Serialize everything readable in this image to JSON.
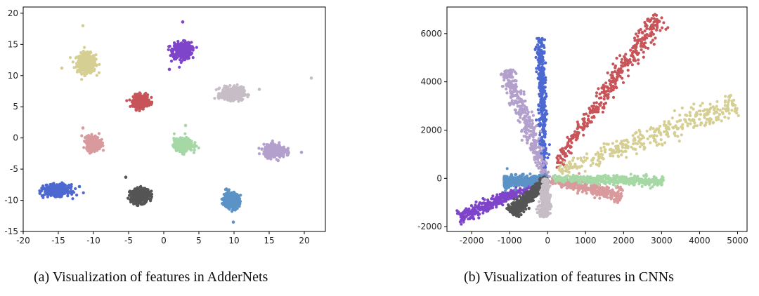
{
  "chart_data": [
    {
      "type": "scatter",
      "caption": "(a) Visualization of features in AdderNets",
      "xlim": [
        -20,
        23
      ],
      "ylim": [
        -15,
        21
      ],
      "xticks": [
        -20,
        -15,
        -10,
        -5,
        0,
        5,
        10,
        15,
        20
      ],
      "yticks": [
        -15,
        -10,
        -5,
        0,
        5,
        10,
        15,
        20
      ],
      "grid": false,
      "series": [
        {
          "color": "#d6cf93",
          "center": [
            -11,
            12
          ],
          "spread": [
            1.2,
            1.4
          ],
          "outliers": [
            [
              -11.5,
              18
            ],
            [
              -14.5,
              11.2
            ]
          ]
        },
        {
          "color": "#7e44c9",
          "center": [
            2.6,
            14
          ],
          "spread": [
            1.2,
            1.2
          ],
          "outliers": [
            [
              2.7,
              18.6
            ],
            [
              0.8,
              11
            ]
          ]
        },
        {
          "color": "#c65459",
          "center": [
            -3.2,
            5.9
          ],
          "spread": [
            1.0,
            0.9
          ],
          "outliers": []
        },
        {
          "color": "#c6bdc6",
          "center": [
            9.8,
            7.1
          ],
          "spread": [
            1.4,
            0.9
          ],
          "outliers": [
            [
              21,
              9.6
            ],
            [
              13.6,
              7.8
            ]
          ]
        },
        {
          "color": "#d99a9d",
          "center": [
            -10,
            -0.8
          ],
          "spread": [
            0.9,
            1.0
          ],
          "outliers": [
            [
              -11.5,
              1.6
            ]
          ]
        },
        {
          "color": "#a6d8a6",
          "center": [
            2.8,
            -1.1
          ],
          "spread": [
            1.2,
            0.9
          ],
          "outliers": [
            [
              3.1,
              2
            ]
          ]
        },
        {
          "color": "#b3a0cc",
          "center": [
            15.8,
            -2.1
          ],
          "spread": [
            1.4,
            0.9
          ],
          "outliers": [
            [
              19.6,
              -2.3
            ]
          ]
        },
        {
          "color": "#4d68d1",
          "center": [
            -15.2,
            -8.4
          ],
          "spread": [
            1.6,
            0.8
          ],
          "outliers": [
            [
              -12,
              -7.8
            ]
          ]
        },
        {
          "color": "#555555",
          "center": [
            -3.4,
            -9.3
          ],
          "spread": [
            1.2,
            1.0
          ],
          "outliers": [
            [
              -5.4,
              -6.3
            ]
          ]
        },
        {
          "color": "#5c93c6",
          "center": [
            9.6,
            -10
          ],
          "spread": [
            1.0,
            1.1
          ],
          "outliers": [
            [
              9.9,
              -13.5
            ]
          ]
        }
      ]
    },
    {
      "type": "scatter",
      "caption": "(b) Visualization of features in CNNs",
      "xlim": [
        -2650,
        5250
      ],
      "ylim": [
        -2200,
        7100
      ],
      "xticks": [
        -2000,
        -1000,
        0,
        1000,
        2000,
        3000,
        4000,
        5000
      ],
      "yticks": [
        -2000,
        0,
        2000,
        4000,
        6000
      ],
      "grid": false,
      "series": [
        {
          "color": "#c65459",
          "start": [
            200,
            500
          ],
          "end": [
            2950,
            6750
          ],
          "width": 130
        },
        {
          "color": "#d6cf93",
          "start": [
            300,
            300
          ],
          "end": [
            4950,
            3100
          ],
          "width": 160
        },
        {
          "color": "#4d68d1",
          "start": [
            -80,
            0
          ],
          "end": [
            -200,
            5850
          ],
          "width": 50
        },
        {
          "color": "#b3a0cc",
          "start": [
            -50,
            0
          ],
          "end": [
            -1050,
            4500
          ],
          "width": 110
        },
        {
          "color": "#7e44c9",
          "start": [
            0,
            0
          ],
          "end": [
            -2350,
            -1650
          ],
          "width": 70
        },
        {
          "color": "#5c93c6",
          "start": [
            0,
            -50
          ],
          "end": [
            -1150,
            -150
          ],
          "width": 70
        },
        {
          "color": "#555555",
          "start": [
            0,
            0
          ],
          "end": [
            -950,
            -1450
          ],
          "width": 80
        },
        {
          "color": "#c6bdc6",
          "start": [
            -50,
            0
          ],
          "end": [
            -100,
            -1600
          ],
          "width": 60
        },
        {
          "color": "#d99a9d",
          "start": [
            100,
            -50
          ],
          "end": [
            1950,
            -720
          ],
          "width": 80
        },
        {
          "color": "#a6d8a6",
          "start": [
            100,
            -10
          ],
          "end": [
            3050,
            -120
          ],
          "width": 55
        }
      ]
    }
  ]
}
